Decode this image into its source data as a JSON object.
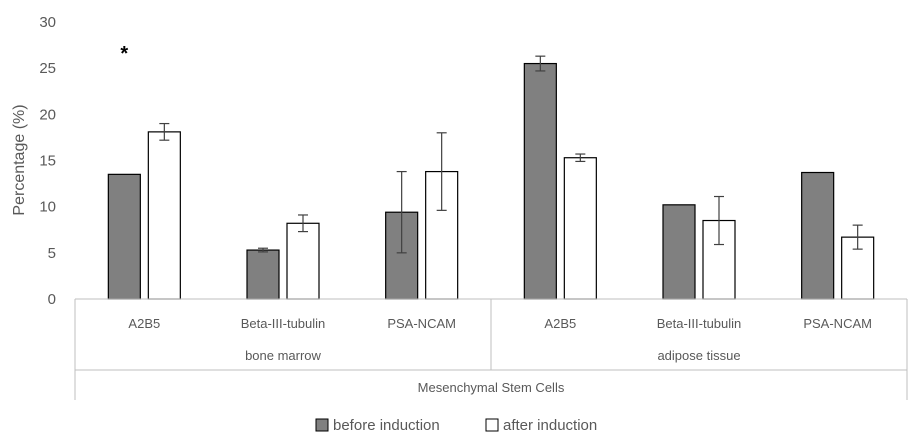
{
  "chart_data": {
    "type": "bar",
    "ylabel": "Percentage  (%)",
    "ylim": [
      0,
      30
    ],
    "yticks": [
      0,
      5,
      10,
      15,
      20,
      25,
      30
    ],
    "grid": false,
    "legend_position": "bottom",
    "categories": [
      "A2B5",
      "Beta-III-tubulin",
      "PSA-NCAM",
      "A2B5",
      "Beta-III-tubulin",
      "PSA-NCAM"
    ],
    "groups": [
      {
        "label": "bone marrow",
        "categories": [
          "A2B5",
          "Beta-III-tubulin",
          "PSA-NCAM"
        ]
      },
      {
        "label": "adipose tissue",
        "categories": [
          "A2B5",
          "Beta-III-tubulin",
          "PSA-NCAM"
        ]
      }
    ],
    "super_group": "Mesenchymal Stem Cells",
    "series": [
      {
        "name": "before induction",
        "color": "#808080",
        "values": [
          13.5,
          5.3,
          9.4,
          25.5,
          10.2,
          13.7
        ],
        "errors": [
          0.0,
          0.2,
          4.4,
          0.8,
          0.0,
          0.0
        ]
      },
      {
        "name": "after induction",
        "color": "#ffffff",
        "values": [
          18.1,
          8.2,
          13.8,
          15.3,
          8.5,
          6.7
        ],
        "errors": [
          0.9,
          0.9,
          4.2,
          0.4,
          2.6,
          1.3
        ]
      }
    ],
    "annotations": [
      {
        "text": "*",
        "category_index": 0
      }
    ]
  }
}
